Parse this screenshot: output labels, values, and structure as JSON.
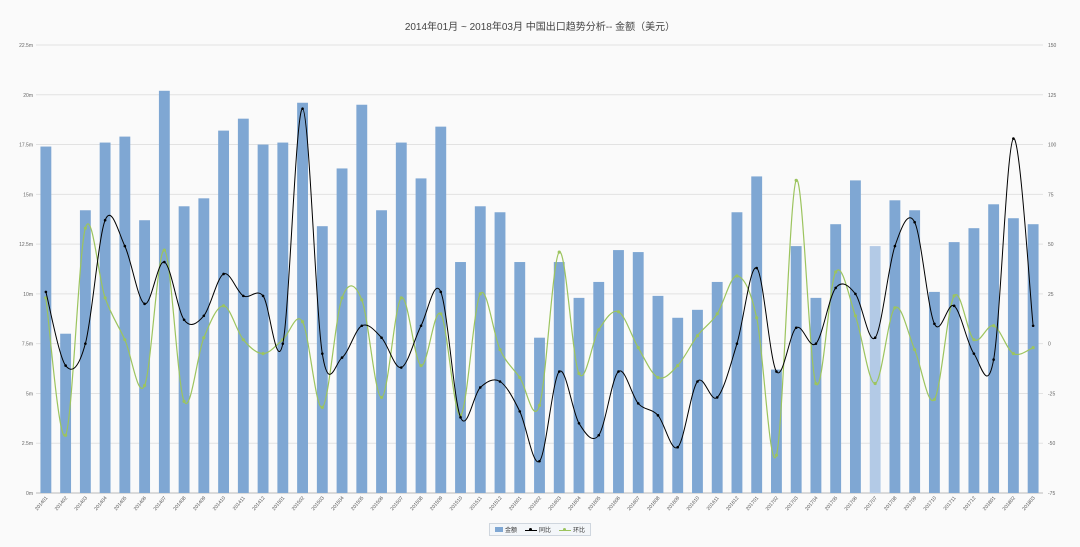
{
  "chart_data": {
    "type": "bar+line",
    "title": "2014年01月 ~ 2018年03月 中国出口趋势分析-- 金额（美元）",
    "categories": [
      "201401",
      "201402",
      "201403",
      "201404",
      "201405",
      "201406",
      "201407",
      "201408",
      "201409",
      "201410",
      "201411",
      "201412",
      "201501",
      "201502",
      "201503",
      "201504",
      "201505",
      "201506",
      "201507",
      "201508",
      "201509",
      "201510",
      "201511",
      "201512",
      "201601",
      "201602",
      "201603",
      "201604",
      "201605",
      "201606",
      "201607",
      "201608",
      "201609",
      "201610",
      "201611",
      "201612",
      "201701",
      "201702",
      "201703",
      "201704",
      "201705",
      "201706",
      "201707",
      "201708",
      "201709",
      "201710",
      "201711",
      "201712",
      "201801",
      "201802",
      "201803"
    ],
    "y_left": {
      "range": [
        0,
        22.5
      ],
      "ticks": [
        0,
        2.5,
        5,
        7.5,
        10,
        12.5,
        15,
        17.5,
        20,
        22.5
      ],
      "tick_labels": [
        "0m",
        "2.5m",
        "5m",
        "7.5m",
        "10m",
        "12.5m",
        "15m",
        "17.5m",
        "20m",
        "22.5m"
      ]
    },
    "y_right": {
      "range": [
        -75,
        150
      ],
      "ticks": [
        -75,
        -50,
        -25,
        0,
        25,
        50,
        75,
        100,
        125,
        150
      ],
      "tick_labels": [
        "-75",
        "-50",
        "-25",
        "0",
        "25",
        "50",
        "75",
        "100",
        "125",
        "150"
      ]
    },
    "grid": true,
    "legend_position": "bottom-center",
    "series": [
      {
        "name": "金额",
        "kind": "bar",
        "axis": "left",
        "color": "#7fa7d3",
        "highlight_index": 42,
        "highlight_color": "#b3cae6",
        "values": [
          17.4,
          8.0,
          14.2,
          17.6,
          17.9,
          13.7,
          20.2,
          14.4,
          14.8,
          18.2,
          18.8,
          17.5,
          17.6,
          19.6,
          13.4,
          16.3,
          19.5,
          14.2,
          17.6,
          15.8,
          18.4,
          11.6,
          14.4,
          14.1,
          11.6,
          7.8,
          11.6,
          9.8,
          10.6,
          12.2,
          12.1,
          9.9,
          8.8,
          9.2,
          10.6,
          14.1,
          15.9,
          6.2,
          12.4,
          9.8,
          13.5,
          15.7,
          12.4,
          14.7,
          14.2,
          10.1,
          12.6,
          13.3,
          14.5,
          13.8,
          13.5
        ]
      },
      {
        "name": "同比",
        "kind": "line",
        "axis": "right",
        "color": "#000000",
        "values": [
          26,
          -11,
          0,
          62,
          49,
          20,
          41,
          12,
          14,
          35,
          24,
          24,
          0,
          118,
          -5,
          -7,
          9,
          3,
          -12,
          9,
          26,
          -37,
          -22,
          -19,
          -34,
          -59,
          -14,
          -40,
          -46,
          -14,
          -30,
          -36,
          -52,
          -19,
          -27,
          0,
          38,
          -14,
          8,
          0,
          28,
          25,
          3,
          49,
          61,
          10,
          19,
          -5,
          -8,
          103,
          9
        ]
      },
      {
        "name": "环比",
        "kind": "line",
        "axis": "right",
        "color": "#9cc45e",
        "values": [
          23,
          -46,
          58,
          23,
          2,
          -21,
          47,
          -29,
          3,
          19,
          2,
          -5,
          2,
          11,
          -32,
          23,
          22,
          -27,
          23,
          -11,
          15,
          -36,
          25,
          -3,
          -17,
          -31,
          46,
          -15,
          7,
          16,
          -2,
          -17,
          -11,
          4,
          15,
          34,
          13,
          -56,
          82,
          -20,
          36,
          14,
          -20,
          18,
          -3,
          -28,
          24,
          2,
          9,
          -5,
          -2
        ]
      }
    ]
  }
}
